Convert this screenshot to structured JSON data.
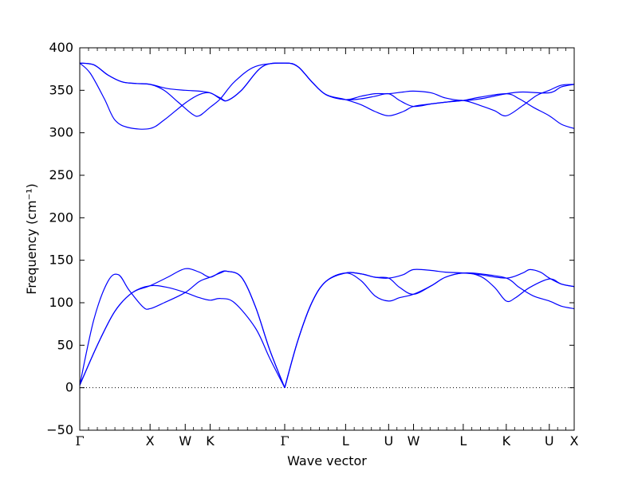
{
  "chart_data": {
    "type": "line",
    "xlabel": "Wave vector",
    "ylabel": "Frequency (cm⁻¹)",
    "ylim": [
      -50,
      400
    ],
    "yticks": [
      -50,
      0,
      50,
      100,
      150,
      200,
      250,
      300,
      350,
      400
    ],
    "x_points": [
      {
        "label": "Γ",
        "x": 0.0
      },
      {
        "label": "X",
        "x": 1.0
      },
      {
        "label": "W",
        "x": 1.5
      },
      {
        "label": "K",
        "x": 1.854
      },
      {
        "label": "Γ",
        "x": 2.915
      },
      {
        "label": "L",
        "x": 3.781
      },
      {
        "label": "U",
        "x": 4.393
      },
      {
        "label": "W",
        "x": 4.747
      },
      {
        "label": "L",
        "x": 5.454
      },
      {
        "label": "K",
        "x": 6.066
      },
      {
        "label": "U",
        "x": 6.678
      },
      {
        "label": "X",
        "x": 7.032
      }
    ],
    "xlim": [
      0.0,
      7.032
    ],
    "zero_line": {
      "y": 0,
      "style": "dotted"
    },
    "line_color": "#0000ff",
    "series": [
      {
        "points": [
          [
            0.0,
            3
          ],
          [
            0.25,
            50
          ],
          [
            0.5,
            90
          ],
          [
            0.75,
            112
          ],
          [
            1.0,
            120
          ],
          [
            1.25,
            118
          ],
          [
            1.5,
            112
          ],
          [
            1.7,
            106
          ],
          [
            1.854,
            103
          ],
          [
            2.0,
            105
          ],
          [
            2.2,
            100
          ],
          [
            2.5,
            70
          ],
          [
            2.7,
            35
          ],
          [
            2.915,
            0
          ]
        ]
      },
      {
        "points": [
          [
            0.0,
            3
          ],
          [
            0.2,
            80
          ],
          [
            0.4,
            125
          ],
          [
            0.55,
            133
          ],
          [
            0.7,
            115
          ],
          [
            0.9,
            95
          ],
          [
            1.0,
            93
          ],
          [
            1.2,
            100
          ],
          [
            1.5,
            112
          ],
          [
            1.7,
            125
          ],
          [
            1.854,
            130
          ],
          [
            2.0,
            135
          ],
          [
            2.1,
            137
          ],
          [
            2.3,
            130
          ],
          [
            2.5,
            95
          ],
          [
            2.7,
            45
          ],
          [
            2.915,
            0
          ]
        ]
      },
      {
        "points": [
          [
            0.0,
            3
          ],
          [
            0.25,
            50
          ],
          [
            0.5,
            90
          ],
          [
            0.75,
            112
          ],
          [
            1.0,
            120
          ],
          [
            1.25,
            130
          ],
          [
            1.5,
            140
          ],
          [
            1.7,
            136
          ],
          [
            1.854,
            130
          ],
          [
            2.0,
            136
          ],
          [
            2.1,
            137
          ],
          [
            2.3,
            130
          ],
          [
            2.5,
            95
          ],
          [
            2.7,
            45
          ],
          [
            2.915,
            0
          ]
        ]
      },
      {
        "points": [
          [
            2.915,
            0
          ],
          [
            3.1,
            55
          ],
          [
            3.3,
            100
          ],
          [
            3.5,
            125
          ],
          [
            3.781,
            135
          ],
          [
            4.0,
            134
          ],
          [
            4.2,
            130
          ],
          [
            4.393,
            129
          ],
          [
            4.6,
            133
          ],
          [
            4.747,
            139
          ],
          [
            5.0,
            138
          ],
          [
            5.2,
            136
          ],
          [
            5.454,
            135
          ],
          [
            5.7,
            133
          ],
          [
            6.066,
            129
          ],
          [
            6.3,
            135
          ],
          [
            6.4,
            139
          ],
          [
            6.55,
            136
          ],
          [
            6.678,
            129
          ],
          [
            6.85,
            122
          ],
          [
            7.032,
            119
          ]
        ]
      },
      {
        "points": [
          [
            2.915,
            0
          ],
          [
            3.1,
            55
          ],
          [
            3.3,
            100
          ],
          [
            3.5,
            125
          ],
          [
            3.781,
            135
          ],
          [
            4.0,
            126
          ],
          [
            4.2,
            108
          ],
          [
            4.393,
            102
          ],
          [
            4.55,
            106
          ],
          [
            4.747,
            110
          ],
          [
            5.0,
            120
          ],
          [
            5.2,
            130
          ],
          [
            5.454,
            135
          ],
          [
            5.7,
            131
          ],
          [
            5.9,
            118
          ],
          [
            6.066,
            102
          ],
          [
            6.2,
            106
          ],
          [
            6.4,
            118
          ],
          [
            6.678,
            128
          ],
          [
            6.85,
            122
          ],
          [
            7.032,
            119
          ]
        ]
      },
      {
        "points": [
          [
            2.915,
            0
          ],
          [
            3.1,
            55
          ],
          [
            3.3,
            100
          ],
          [
            3.5,
            125
          ],
          [
            3.781,
            135
          ],
          [
            4.0,
            134
          ],
          [
            4.2,
            130
          ],
          [
            4.393,
            129
          ],
          [
            4.55,
            118
          ],
          [
            4.747,
            110
          ],
          [
            5.0,
            120
          ],
          [
            5.2,
            130
          ],
          [
            5.454,
            135
          ],
          [
            5.7,
            134
          ],
          [
            6.066,
            129
          ],
          [
            6.25,
            118
          ],
          [
            6.45,
            108
          ],
          [
            6.678,
            102
          ],
          [
            6.85,
            96
          ],
          [
            7.032,
            93
          ]
        ]
      },
      {
        "points": [
          [
            0.0,
            382
          ],
          [
            0.2,
            380
          ],
          [
            0.4,
            368
          ],
          [
            0.6,
            360
          ],
          [
            0.8,
            358
          ],
          [
            1.0,
            357
          ],
          [
            1.25,
            352
          ],
          [
            1.5,
            350
          ],
          [
            1.7,
            349
          ],
          [
            1.854,
            347
          ],
          [
            2.0,
            341
          ],
          [
            2.1,
            338
          ],
          [
            2.3,
            350
          ],
          [
            2.6,
            378
          ],
          [
            2.915,
            382
          ],
          [
            3.1,
            378
          ],
          [
            3.3,
            360
          ],
          [
            3.5,
            345
          ],
          [
            3.781,
            339
          ],
          [
            4.0,
            343
          ],
          [
            4.2,
            346
          ],
          [
            4.393,
            346
          ],
          [
            4.6,
            348
          ],
          [
            4.747,
            349
          ],
          [
            5.0,
            347
          ],
          [
            5.2,
            341
          ],
          [
            5.454,
            338
          ],
          [
            5.7,
            340
          ],
          [
            6.066,
            346
          ],
          [
            6.3,
            348
          ],
          [
            6.678,
            347
          ],
          [
            6.85,
            354
          ],
          [
            7.032,
            357
          ]
        ]
      },
      {
        "points": [
          [
            0.0,
            382
          ],
          [
            0.2,
            380
          ],
          [
            0.4,
            368
          ],
          [
            0.6,
            360
          ],
          [
            0.8,
            358
          ],
          [
            1.0,
            357
          ],
          [
            1.2,
            350
          ],
          [
            1.4,
            336
          ],
          [
            1.6,
            322
          ],
          [
            1.7,
            320
          ],
          [
            1.854,
            330
          ],
          [
            2.0,
            340
          ],
          [
            2.2,
            360
          ],
          [
            2.5,
            378
          ],
          [
            2.915,
            382
          ],
          [
            3.1,
            378
          ],
          [
            3.3,
            360
          ],
          [
            3.5,
            345
          ],
          [
            3.781,
            339
          ],
          [
            4.0,
            333
          ],
          [
            4.2,
            325
          ],
          [
            4.393,
            320
          ],
          [
            4.6,
            325
          ],
          [
            4.747,
            331
          ],
          [
            5.0,
            334
          ],
          [
            5.2,
            336
          ],
          [
            5.454,
            338
          ],
          [
            5.7,
            332
          ],
          [
            5.9,
            326
          ],
          [
            6.066,
            320
          ],
          [
            6.3,
            332
          ],
          [
            6.5,
            344
          ],
          [
            6.678,
            350
          ],
          [
            6.85,
            356
          ],
          [
            7.032,
            357
          ]
        ]
      },
      {
        "points": [
          [
            0.0,
            382
          ],
          [
            0.15,
            370
          ],
          [
            0.35,
            340
          ],
          [
            0.5,
            315
          ],
          [
            0.7,
            306
          ],
          [
            1.0,
            305
          ],
          [
            1.2,
            315
          ],
          [
            1.5,
            335
          ],
          [
            1.7,
            345
          ],
          [
            1.854,
            347
          ],
          [
            2.0,
            340
          ],
          [
            2.1,
            338
          ],
          [
            2.3,
            350
          ],
          [
            2.6,
            378
          ],
          [
            2.915,
            382
          ],
          [
            3.1,
            378
          ],
          [
            3.3,
            360
          ],
          [
            3.5,
            345
          ],
          [
            3.781,
            339
          ],
          [
            4.0,
            340
          ],
          [
            4.2,
            343
          ],
          [
            4.393,
            346
          ],
          [
            4.55,
            338
          ],
          [
            4.747,
            331
          ],
          [
            5.0,
            334
          ],
          [
            5.2,
            336
          ],
          [
            5.454,
            338
          ],
          [
            5.7,
            342
          ],
          [
            6.066,
            346
          ],
          [
            6.25,
            340
          ],
          [
            6.45,
            330
          ],
          [
            6.678,
            320
          ],
          [
            6.85,
            310
          ],
          [
            7.032,
            305
          ]
        ]
      }
    ]
  }
}
